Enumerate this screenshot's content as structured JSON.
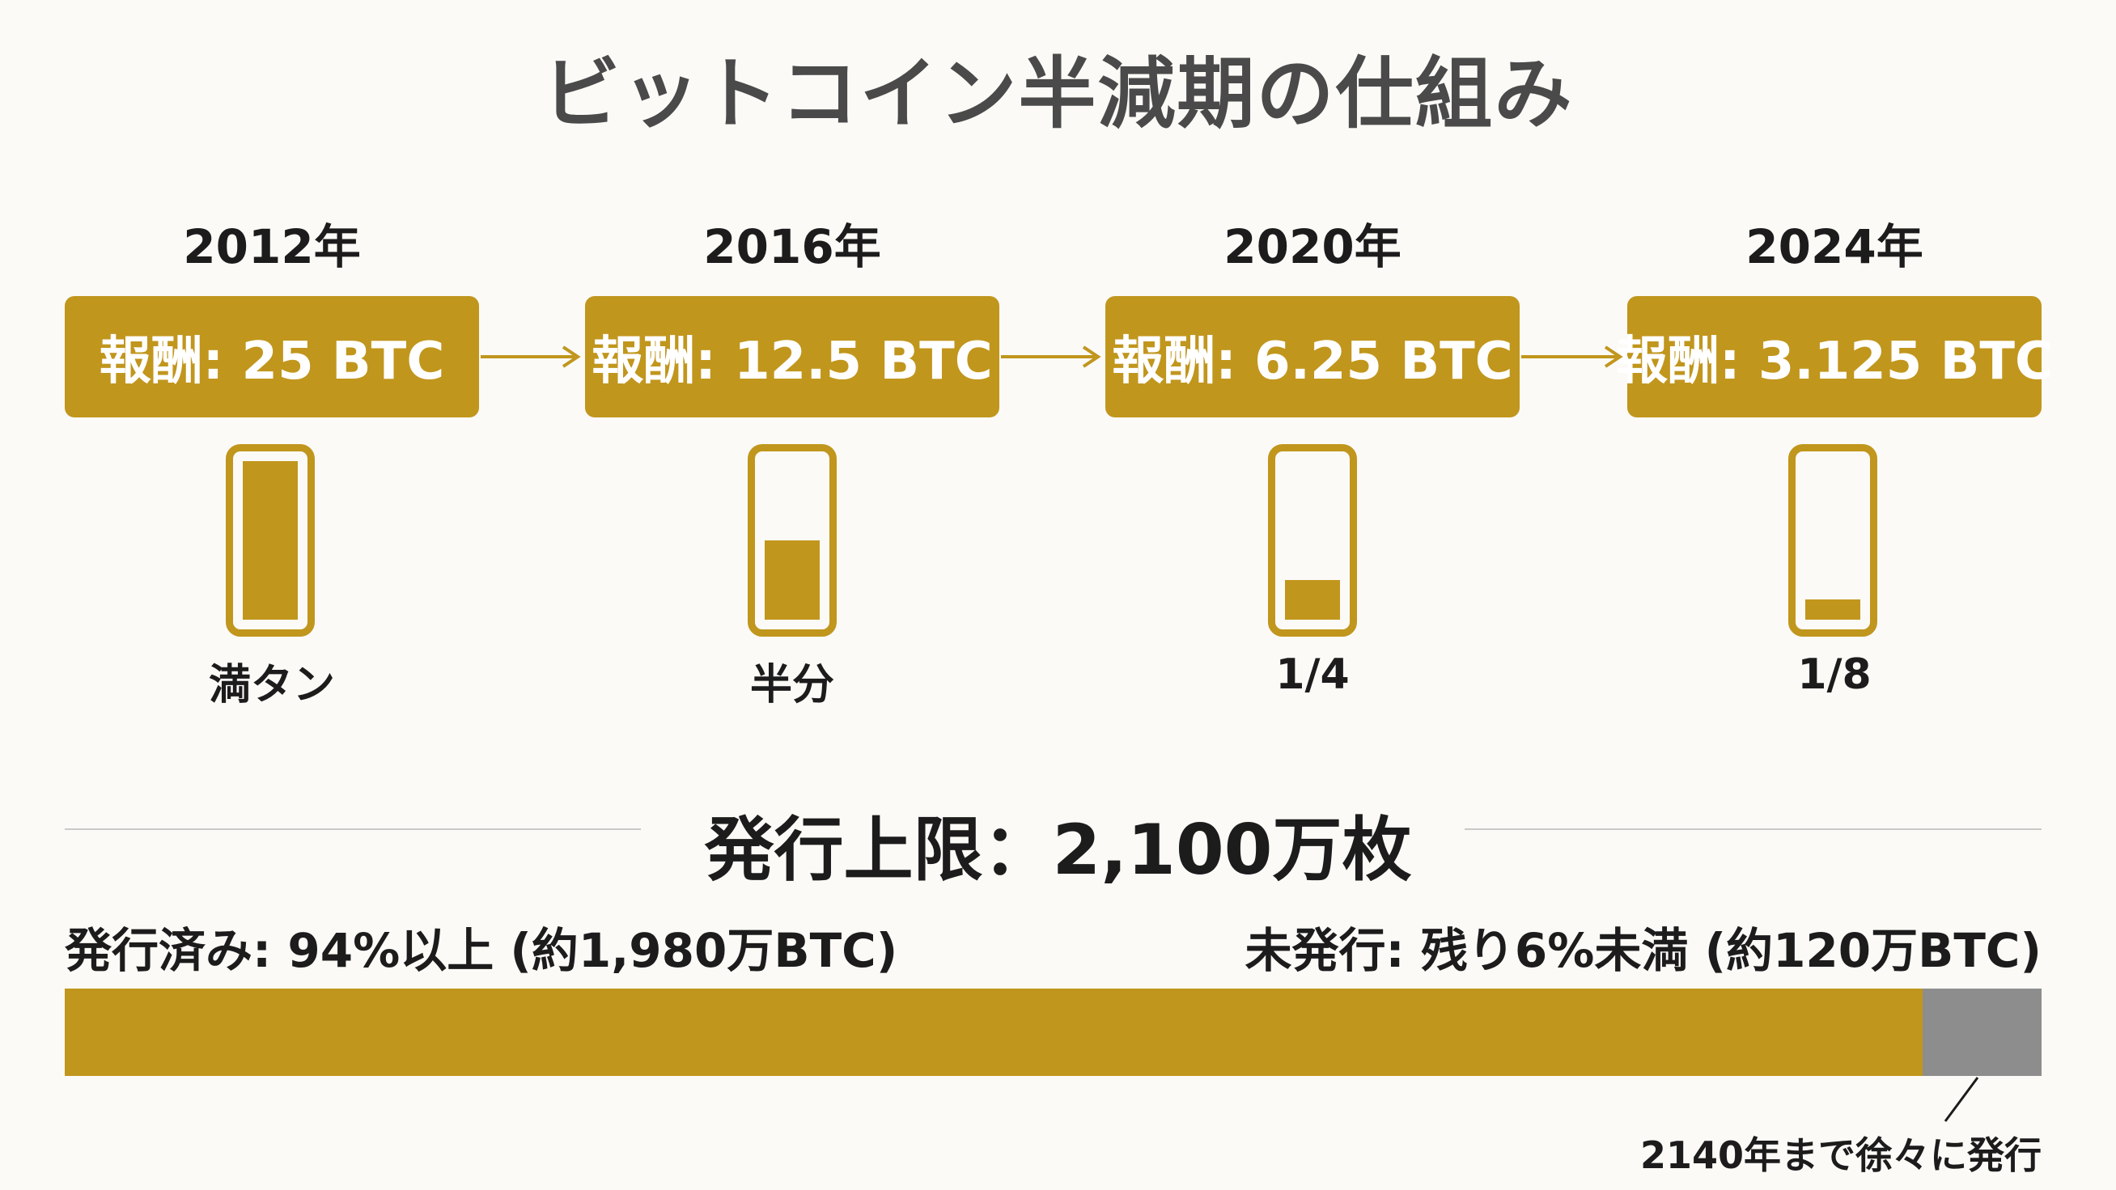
{
  "title": "ビットコイン半減期の仕組み",
  "colors": {
    "accent": "#c1961d",
    "remaining": "#8d8d8d"
  },
  "stages": [
    {
      "year": "2012年",
      "reward": "報酬: 25 BTC",
      "level_label": "満タン",
      "fill_fraction": 1.0
    },
    {
      "year": "2016年",
      "reward": "報酬: 12.5 BTC",
      "level_label": "半分",
      "fill_fraction": 0.5
    },
    {
      "year": "2020年",
      "reward": "報酬: 6.25 BTC",
      "level_label": "1/4",
      "fill_fraction": 0.25
    },
    {
      "year": "2024年",
      "reward": "報酬: 3.125 BTC",
      "level_label": "1/8",
      "fill_fraction": 0.125
    }
  ],
  "supply": {
    "cap_label": "発行上限：2,100万枚",
    "issued_label": "発行済み: 94%以上 (約1,980万BTC)",
    "unissued_label": "未発行: 残り6%未満 (約120万BTC)",
    "issued_fraction": 0.94,
    "note": "2140年まで徐々に発行"
  }
}
